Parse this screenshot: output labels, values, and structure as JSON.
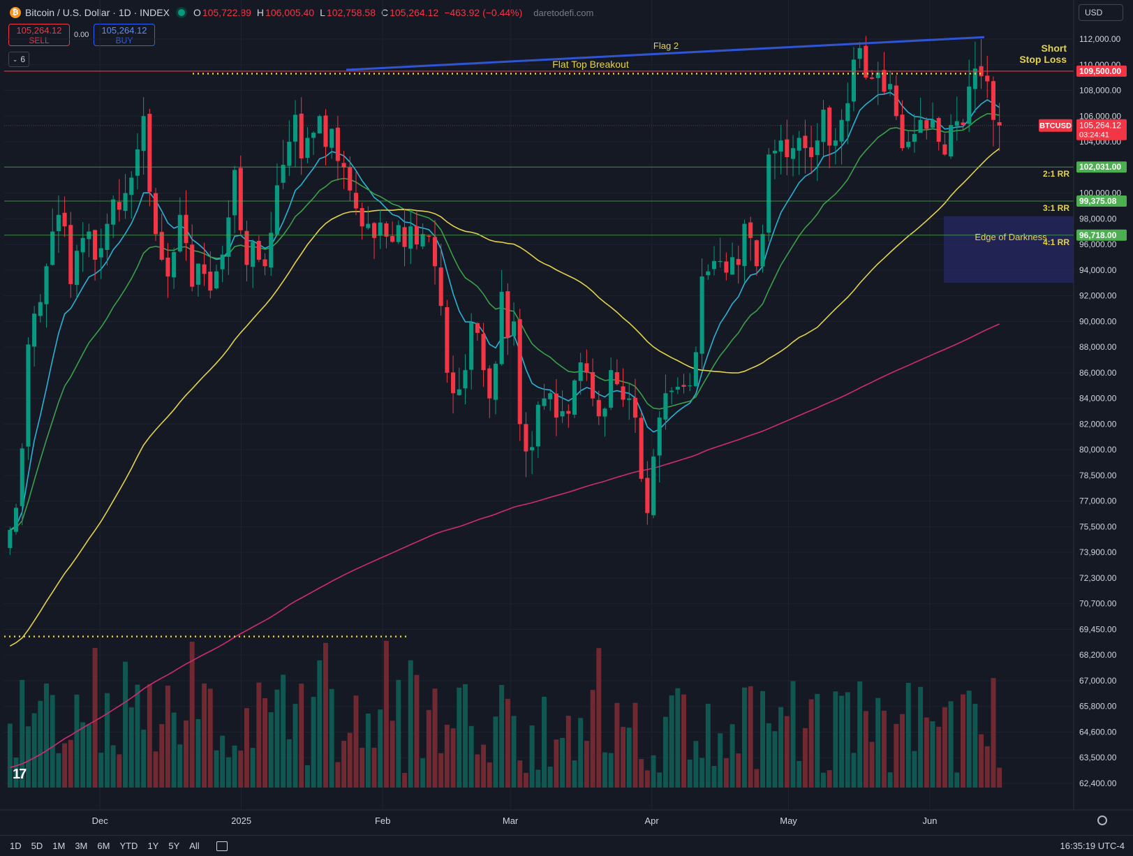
{
  "header": {
    "symbol": "Bitcoin / U.S. Dollar · 1D · INDEX",
    "o_label": "O",
    "o_value": "105,722.89",
    "h_label": "H",
    "h_value": "106,005.40",
    "l_label": "L",
    "l_value": "102,758.58",
    "c_label": "C",
    "c_value": "105,264.12",
    "change": "−463.92 (−0.44%)",
    "site": "daretodefi.com",
    "currency": "USD"
  },
  "trade": {
    "sell_price": "105,264.12",
    "sell_label": "SELL",
    "spread": "0.00",
    "buy_price": "105,264.12",
    "buy_label": "BUY",
    "indicator_count": "6"
  },
  "colors": {
    "up": "#089981",
    "down": "#f23645",
    "ema_fast": "#2ab3d6",
    "ema_mid": "#3ba04a",
    "sma_50": "#e5d34a",
    "sma_200": "#d02c6f",
    "flag_line": "#2f55d4",
    "level": "#c23838"
  },
  "chart_data": {
    "type": "candlestick",
    "y_axis_ticks": [
      "112,000.00",
      "110,000.00",
      "108,000.00",
      "106,000.00",
      "104,000.00",
      "102,000.00",
      "100,000.00",
      "98,000.00",
      "96,000.00",
      "94,000.00",
      "92,000.00",
      "90,000.00",
      "88,000.00",
      "86,000.00",
      "84,000.00",
      "82,000.00",
      "80,000.00",
      "78,500.00",
      "77,000.00",
      "75,500.00",
      "73,900.00",
      "72,300.00",
      "70,700.00",
      "69,450.00",
      "68,200.00",
      "67,000.00",
      "65,800.00",
      "64,600.00",
      "63,500.00",
      "62,400.00"
    ],
    "x_axis_labels": [
      "Dec",
      "2025",
      "Feb",
      "Mar",
      "Apr",
      "May",
      "Jun"
    ],
    "x_axis_dates": [
      "2024-12-01",
      "2025-01-01",
      "2025-02-01",
      "2025-03-01",
      "2025-04-01",
      "2025-05-01",
      "2025-06-01"
    ],
    "last_price": "105,264.12",
    "last_price_label": "BTCUSD",
    "countdown": "03:24:41",
    "levels": [
      {
        "value": 109500,
        "label": "109,500.00",
        "color": "#f23645"
      },
      {
        "value": 102031,
        "label": "102,031.00",
        "color": "#4caf50",
        "rr": "2:1 RR"
      },
      {
        "value": 99375,
        "label": "99,375.08",
        "color": "#4caf50",
        "rr": "3:1 RR"
      },
      {
        "value": 96718,
        "label": "96,718.00",
        "color": "#4caf50",
        "rr": "4:1 RR"
      }
    ],
    "annotations": [
      "Flag 2",
      "Flat Top Breakout",
      "Short",
      "Stop Loss",
      "Edge of Darkness"
    ],
    "series_closes": [
      75300,
      76600,
      80100,
      88200,
      90600,
      91500,
      94300,
      97000,
      98300,
      97400,
      92900,
      95500,
      96500,
      97000,
      94800,
      95700,
      97600,
      99500,
      98700,
      100000,
      101200,
      103400,
      106000,
      100100,
      96800,
      94800,
      93500,
      95400,
      98300,
      96100,
      92700,
      94500,
      93700,
      92400,
      93900,
      95200,
      98100,
      101800,
      97100,
      94400,
      96200,
      94800,
      94300,
      96900,
      100600,
      102200,
      104000,
      106100,
      102700,
      104300,
      104700,
      106000,
      103600,
      105000,
      102500,
      102000,
      100200,
      98800,
      97400,
      97600,
      96500,
      97700,
      96600,
      96200,
      97500,
      95800,
      97400,
      96000,
      96800,
      96600,
      94300,
      91200,
      86000,
      84400,
      84700,
      86200,
      89900,
      89100,
      86200,
      84000,
      86700,
      92300,
      88700,
      90000,
      82000,
      79900,
      80200,
      83500,
      84000,
      84400,
      82500,
      83000,
      82800,
      85400,
      86800,
      86000,
      84000,
      82600,
      83200,
      86200,
      85100,
      83900,
      84000,
      82500,
      78300,
      76300,
      79600,
      82500,
      84400,
      84600,
      84900,
      84900,
      85000,
      87600,
      93500,
      93900,
      94700,
      94700,
      93800,
      95000,
      94400,
      97600,
      96500,
      94300,
      96800,
      103000,
      103300,
      104100,
      102800,
      103500,
      104300,
      103500,
      102800,
      104100,
      106500,
      103700,
      104100,
      105700,
      107000,
      110400,
      111300,
      109000,
      108900,
      109400,
      107900,
      108500,
      106000,
      103500,
      104000,
      104600,
      105700,
      105000,
      105700,
      104000,
      103000,
      105300,
      105600,
      105300,
      108300,
      109700,
      109100,
      108700,
      105700,
      105264
    ]
  },
  "bottom": {
    "ranges": [
      "1D",
      "5D",
      "1M",
      "3M",
      "6M",
      "YTD",
      "1Y",
      "5Y",
      "All"
    ],
    "clock": "16:35:19 UTC-4"
  }
}
